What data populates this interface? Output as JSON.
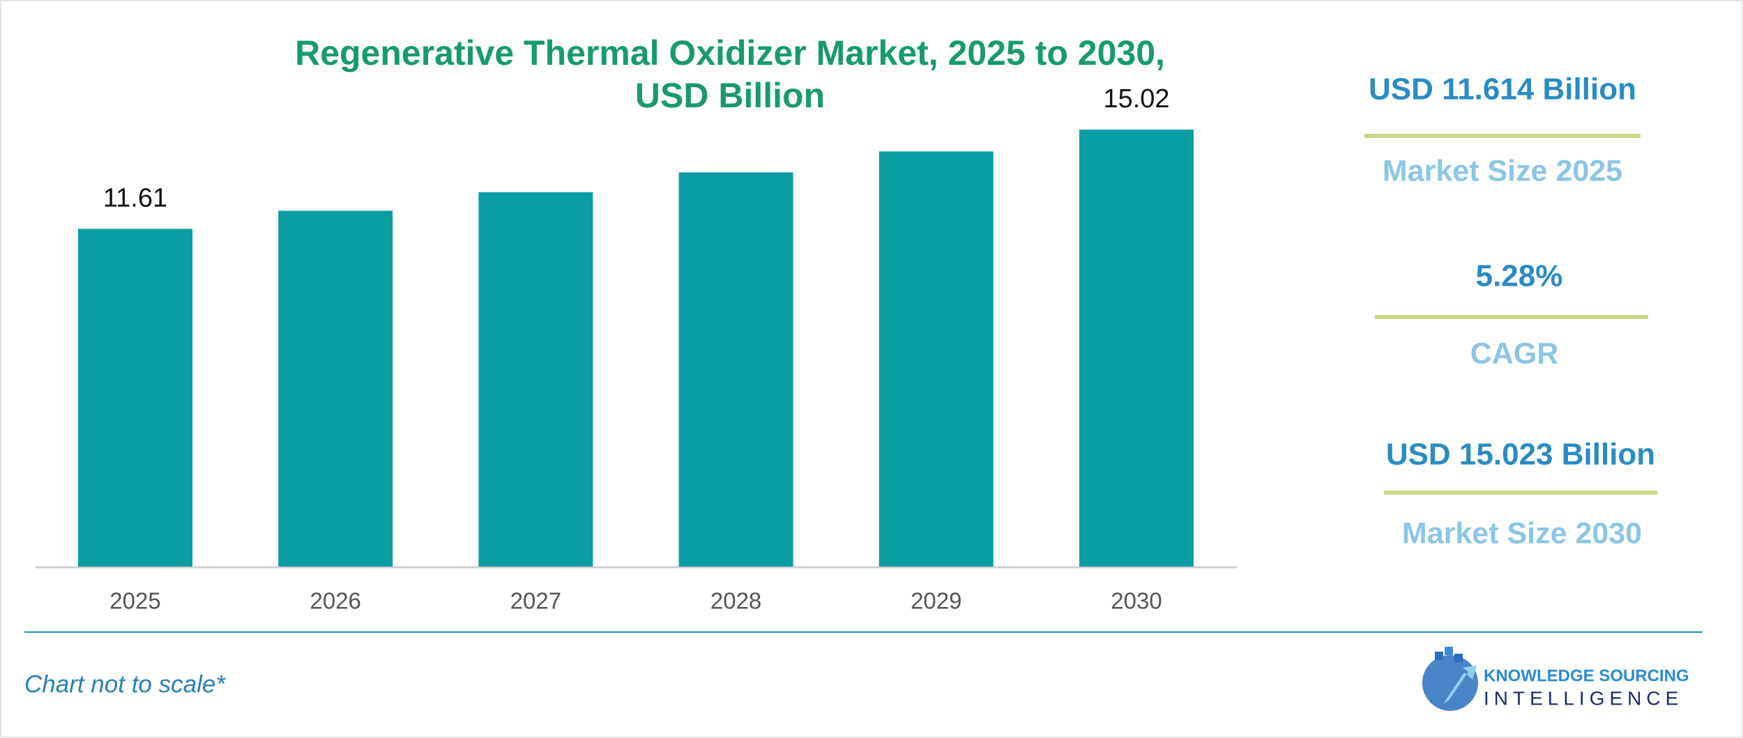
{
  "chart_data": {
    "type": "bar",
    "title": [
      "Regenerative Thermal Oxidizer Market, 2025 to 2030,",
      "USD Billion"
    ],
    "categories": [
      "2025",
      "2026",
      "2027",
      "2028",
      "2029",
      "2030"
    ],
    "values": [
      11.61,
      12.23,
      12.87,
      13.55,
      14.27,
      15.02
    ],
    "value_labels": [
      "11.61",
      null,
      null,
      null,
      null,
      "15.02"
    ],
    "color": "#0a9da2"
  },
  "stats": [
    {
      "value": "USD 11.614 Billion",
      "label": "Market Size 2025"
    },
    {
      "value": "5.28%",
      "label": "CAGR"
    },
    {
      "value": "USD 15.023 Billion",
      "label": "Market Size 2030"
    }
  ],
  "footer": {
    "note": "Chart not to scale*"
  },
  "logo": {
    "line1": "KNOWLEDGE SOURCING",
    "line2": "INTELLIGENCE"
  }
}
